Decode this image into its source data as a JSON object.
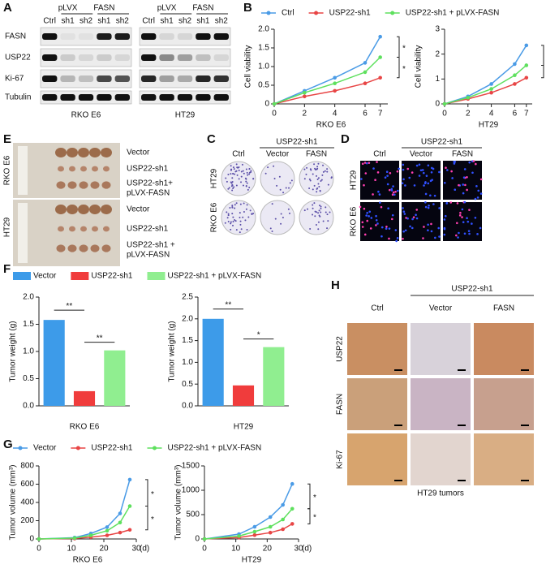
{
  "panels": {
    "labels": [
      "A",
      "B",
      "E",
      "C",
      "D",
      "F",
      "H",
      "G"
    ],
    "A": {
      "vector_header": "pLVX",
      "fasn_header": "FASN",
      "lanes": [
        "Ctrl",
        "sh1",
        "sh2",
        "sh1",
        "sh2"
      ],
      "proteins": [
        "FASN",
        "USP22",
        "Ki-67",
        "Tubulin"
      ],
      "cell_lines": [
        "RKO E6",
        "HT29"
      ]
    },
    "E": {
      "cell_lines": [
        "RKO E6",
        "HT29"
      ],
      "groups_top": [
        "Vector",
        "USP22-sh1",
        "USP22-sh1+",
        "pLVX-FASN"
      ],
      "groups_bottom": [
        "Vector",
        "USP22-sh1",
        "USP22-sh1 +",
        "pLVX-FASN"
      ]
    },
    "C": {
      "header": "USP22-sh1",
      "columns": [
        "Ctrl",
        "Vector",
        "FASN"
      ],
      "rows": [
        "HT29",
        "RKO E6"
      ]
    },
    "D": {
      "header": "USP22-sh1",
      "columns": [
        "Ctrl",
        "Vector",
        "FASN"
      ],
      "rows": [
        "HT29",
        "RKO E6"
      ]
    },
    "H": {
      "header": "USP22-sh1",
      "columns": [
        "Ctrl",
        "Vector",
        "FASN"
      ],
      "rows": [
        "USP22",
        "FASN",
        "Ki-67"
      ],
      "caption": "HT29 tumors"
    }
  },
  "chart_data": [
    {
      "type": "line",
      "ylabel": "Cell viability",
      "xlabel": "RKO E6",
      "x": [
        0,
        2,
        4,
        6,
        7
      ],
      "xlim": [
        0,
        7.5
      ],
      "xticks": [
        0,
        2,
        4,
        6,
        7
      ],
      "ylim": [
        0,
        2
      ],
      "yticks": [
        0,
        0.5,
        {
          "value": 1,
          "label": "1.0"
        },
        1.5,
        {
          "value": 2,
          "label": "2.0"
        }
      ],
      "series": [
        {
          "name": "Ctrl",
          "color": "#4a9be6",
          "values": [
            0,
            0.35,
            0.7,
            1.1,
            1.8
          ]
        },
        {
          "name": "USP22-sh1",
          "color": "#e84545",
          "values": [
            0,
            0.2,
            0.35,
            0.55,
            0.7
          ]
        },
        {
          "name": "USP22-sh1 + pLVX-FASN",
          "color": "#5ee05e",
          "values": [
            0,
            0.3,
            0.55,
            0.85,
            1.25
          ]
        }
      ],
      "annotations": [
        "*",
        "*"
      ]
    },
    {
      "type": "line",
      "ylabel": "Cell viability",
      "xlabel": "HT29",
      "x": [
        0,
        2,
        4,
        6,
        7
      ],
      "xlim": [
        0,
        7.5
      ],
      "xticks": [
        0,
        2,
        4,
        6,
        7
      ],
      "ylim": [
        0,
        3
      ],
      "yticks": [
        0,
        1,
        2,
        3
      ],
      "series": [
        {
          "color": "#4a9be6",
          "values": [
            0,
            0.3,
            0.8,
            1.6,
            2.35
          ]
        },
        {
          "color": "#e84545",
          "values": [
            0,
            0.2,
            0.45,
            0.8,
            1.05
          ]
        },
        {
          "color": "#5ee05e",
          "values": [
            0,
            0.25,
            0.6,
            1.15,
            1.55
          ]
        }
      ],
      "annotations": [
        "*",
        "*"
      ]
    },
    {
      "type": "bar",
      "ylabel": "Tumor weight (g)",
      "xlabel": "RKO E6",
      "ylim": [
        0,
        2
      ],
      "yticks": [
        {
          "value": 0,
          "label": "0.0"
        },
        0.5,
        {
          "value": 1,
          "label": "1.0"
        },
        1.5,
        {
          "value": 2,
          "label": "2.0"
        }
      ],
      "series": [
        {
          "name": "Vector",
          "color": "#3d9be9",
          "values": [
            1.58
          ]
        },
        {
          "name": "USP22-sh1",
          "color": "#f03c3c",
          "values": [
            0.27
          ]
        },
        {
          "name": "USP22-sh1 + pLVX-FASN",
          "color": "#90ee90",
          "values": [
            1.02
          ]
        }
      ],
      "annotations": [
        "**",
        "**"
      ]
    },
    {
      "type": "bar",
      "ylabel": "Tumor weight (g)",
      "xlabel": "HT29",
      "ylim": [
        0,
        2.5
      ],
      "yticks": [
        {
          "value": 0,
          "label": "0.0"
        },
        0.5,
        {
          "value": 1,
          "label": "1.0"
        },
        1.5,
        {
          "value": 2,
          "label": "2.0"
        },
        2.5
      ],
      "series": [
        {
          "color": "#3d9be9",
          "values": [
            2.0
          ]
        },
        {
          "color": "#f03c3c",
          "values": [
            0.47
          ]
        },
        {
          "color": "#90ee90",
          "values": [
            1.35
          ]
        }
      ],
      "annotations": [
        "**",
        "*"
      ]
    },
    {
      "type": "line",
      "ylabel": "Tumor volume (mm³)",
      "xlabel": "RKO E6",
      "xunit": "(d)",
      "x": [
        0,
        11,
        16,
        21,
        25,
        28
      ],
      "xlim": [
        0,
        30
      ],
      "xticks": [
        0,
        10,
        20,
        30
      ],
      "ylim": [
        0,
        800
      ],
      "yticks": [
        0,
        200,
        400,
        600,
        800
      ],
      "series": [
        {
          "name": "Vector",
          "color": "#4a9be6",
          "values": [
            0,
            15,
            60,
            130,
            280,
            650
          ]
        },
        {
          "name": "USP22-sh1",
          "color": "#e84545",
          "values": [
            0,
            5,
            20,
            40,
            70,
            100
          ]
        },
        {
          "name": "USP22-sh1 + pLVX-FASN",
          "color": "#5ee05e",
          "values": [
            0,
            10,
            40,
            90,
            180,
            360
          ]
        }
      ],
      "annotations": [
        "*",
        "*"
      ]
    },
    {
      "type": "line",
      "ylabel": "Tumor volume (mm³)",
      "xlabel": "HT29",
      "xunit": "(d)",
      "x": [
        0,
        11,
        16,
        21,
        25,
        28
      ],
      "xlim": [
        0,
        30
      ],
      "xticks": [
        0,
        10,
        20,
        30
      ],
      "ylim": [
        0,
        1500
      ],
      "yticks": [
        0,
        500,
        1000,
        1500
      ],
      "series": [
        {
          "color": "#4a9be6",
          "values": [
            0,
            100,
            250,
            450,
            700,
            1130
          ]
        },
        {
          "color": "#e84545",
          "values": [
            0,
            30,
            80,
            130,
            200,
            310
          ]
        },
        {
          "color": "#5ee05e",
          "values": [
            0,
            60,
            150,
            250,
            400,
            620
          ]
        }
      ],
      "annotations": [
        "*",
        "*"
      ]
    }
  ]
}
